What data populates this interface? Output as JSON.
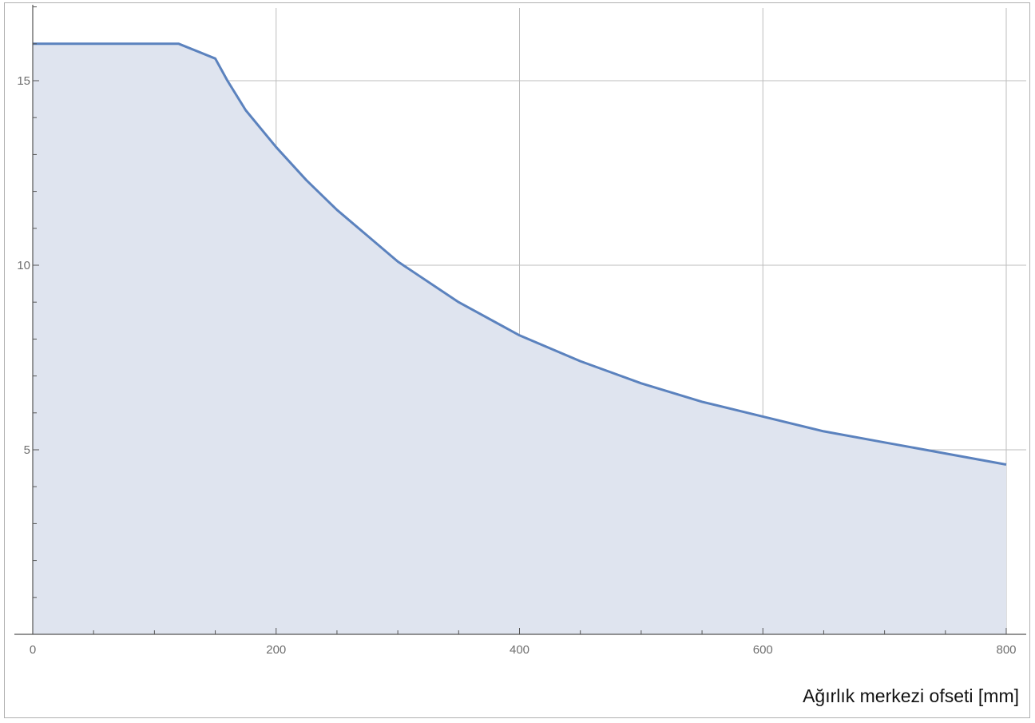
{
  "chart_data": {
    "type": "area",
    "title": "",
    "xlabel": "Ağırlık merkezi ofseti [mm]",
    "ylabel": "",
    "xlim": [
      0,
      800
    ],
    "ylim": [
      0,
      17
    ],
    "grid": true,
    "x_ticks": [
      0,
      200,
      400,
      600,
      800
    ],
    "x_tick_labels": [
      "0",
      "200",
      "400",
      "600",
      "800"
    ],
    "y_ticks": [
      5,
      10,
      15
    ],
    "y_tick_labels": [
      "5",
      "10",
      "15"
    ],
    "series": [
      {
        "x": [
          0,
          120,
          150,
          160,
          175,
          200,
          225,
          250,
          275,
          300,
          350,
          400,
          450,
          500,
          550,
          600,
          650,
          700,
          750,
          800
        ],
        "y": [
          16,
          16,
          15.6,
          15.0,
          14.2,
          13.2,
          12.3,
          11.5,
          10.8,
          10.1,
          9.0,
          8.1,
          7.4,
          6.8,
          6.3,
          5.9,
          5.5,
          5.2,
          4.9,
          4.6
        ]
      }
    ],
    "colors": {
      "line": "#5b82be",
      "fill": "#dfe4ef",
      "grid": "#bdbdbd",
      "axis": "#555555"
    }
  }
}
